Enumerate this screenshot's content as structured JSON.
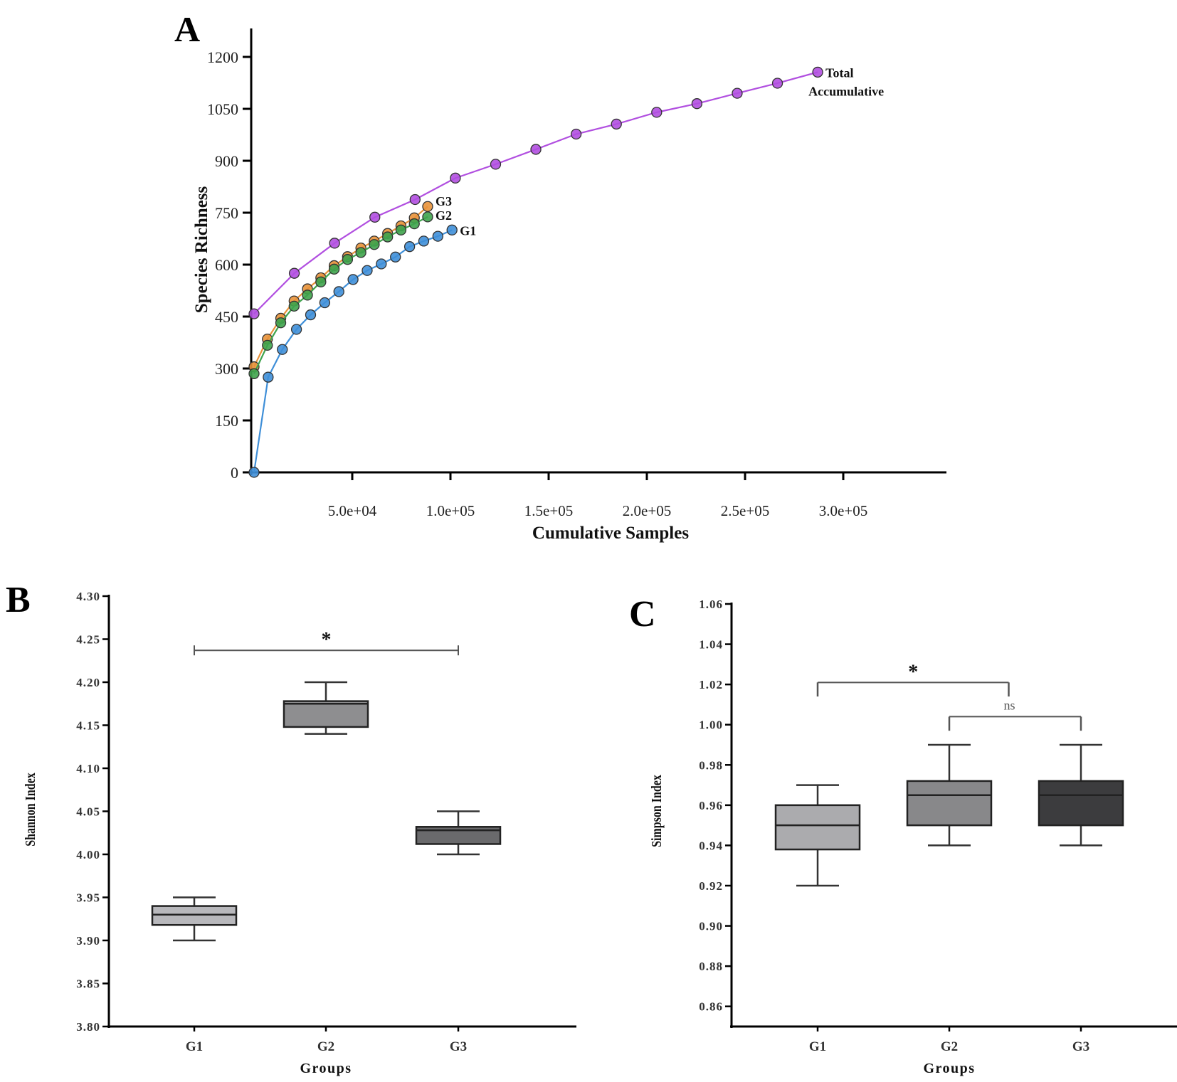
{
  "chart_data": [
    {
      "panel": "A",
      "type": "line",
      "title": "",
      "xlabel": "Cumulative Samples",
      "ylabel": "Species Richness",
      "xlim": [
        0,
        350000
      ],
      "ylim": [
        0,
        1250
      ],
      "x_ticks": [
        50000,
        100000,
        150000,
        200000,
        250000,
        300000
      ],
      "x_tick_labels": [
        "5.0e+04",
        "1.0e+05",
        "1.5e+05",
        "2.0e+05",
        "2.5e+05",
        "3.0e+05"
      ],
      "y_ticks": [
        0,
        150,
        300,
        450,
        600,
        750,
        900,
        1050,
        1200
      ],
      "y_tick_labels": [
        "0",
        "150",
        "300",
        "450",
        "600",
        "750",
        "900",
        "1050",
        "1200"
      ],
      "grid": false,
      "series": [
        {
          "name": "Total Accumulative",
          "label_lines": [
            "Total",
            "Accumulative"
          ],
          "color": "#b14fe0",
          "x": [
            0,
            20500,
            41000,
            61500,
            82000,
            102500,
            123000,
            143500,
            164000,
            184500,
            205000,
            225500,
            246000,
            266500,
            287000
          ],
          "y": [
            458,
            575,
            662,
            737,
            788,
            850,
            890,
            933,
            977,
            1006,
            1040,
            1065,
            1095,
            1124,
            1156
          ]
        },
        {
          "name": "G3",
          "label_lines": [
            "G3"
          ],
          "color": "#e8923a",
          "x": [
            0,
            6800,
            13600,
            20400,
            27200,
            34000,
            40800,
            47600,
            54400,
            61200,
            68000,
            74800,
            81600,
            88400
          ],
          "y": [
            305,
            385,
            445,
            495,
            530,
            562,
            597,
            623,
            648,
            668,
            690,
            712,
            735,
            768
          ]
        },
        {
          "name": "G2",
          "label_lines": [
            "G2"
          ],
          "color": "#3fa34d",
          "x": [
            0,
            6800,
            13600,
            20400,
            27200,
            34000,
            40800,
            47600,
            54400,
            61200,
            68000,
            74800,
            81600,
            88400
          ],
          "y": [
            285,
            367,
            432,
            480,
            512,
            550,
            587,
            615,
            635,
            658,
            680,
            700,
            718,
            738
          ]
        },
        {
          "name": "G1",
          "label_lines": [
            "G1"
          ],
          "color": "#3f8fd8",
          "x": [
            0,
            7200,
            14400,
            21600,
            28800,
            36000,
            43200,
            50400,
            57600,
            64800,
            72000,
            79200,
            86400,
            93600,
            100800
          ],
          "y": [
            0,
            275,
            355,
            413,
            455,
            490,
            522,
            557,
            583,
            602,
            622,
            652,
            668,
            682,
            700
          ]
        }
      ]
    },
    {
      "panel": "B",
      "type": "box",
      "title": "",
      "xlabel": "Groups",
      "ylabel": "Shannon Index",
      "ylim": [
        3.8,
        4.3
      ],
      "y_ticks": [
        3.8,
        3.85,
        3.9,
        3.95,
        4.0,
        4.05,
        4.1,
        4.15,
        4.2,
        4.25,
        4.3
      ],
      "y_tick_labels": [
        "3.80",
        "3.85",
        "3.90",
        "3.95",
        "4.00",
        "4.05",
        "4.10",
        "4.15",
        "4.20",
        "4.25",
        "4.30"
      ],
      "categories": [
        "G1",
        "G2",
        "G3"
      ],
      "boxes": [
        {
          "group": "G1",
          "min": 3.9,
          "q1": 3.918,
          "median": 3.93,
          "q3": 3.94,
          "max": 3.95,
          "color": "#b8b8bc"
        },
        {
          "group": "G2",
          "min": 4.14,
          "q1": 4.148,
          "median": 4.175,
          "q3": 4.178,
          "max": 4.2,
          "color": "#8e8e90"
        },
        {
          "group": "G3",
          "min": 4.0,
          "q1": 4.012,
          "median": 4.028,
          "q3": 4.032,
          "max": 4.05,
          "color": "#6a6a6c"
        }
      ],
      "significance": [
        {
          "from": "G1",
          "to": "G3",
          "label": "*",
          "y": 4.237
        }
      ]
    },
    {
      "panel": "C",
      "type": "box",
      "title": "",
      "xlabel": "Groups",
      "ylabel": "Simpson Index",
      "ylim": [
        0.85,
        1.06
      ],
      "y_ticks": [
        0.86,
        0.88,
        0.9,
        0.92,
        0.94,
        0.96,
        0.98,
        1.0,
        1.02,
        1.04,
        1.06
      ],
      "y_tick_labels": [
        "0.86",
        "0.88",
        "0.90",
        "0.92",
        "0.94",
        "0.96",
        "0.98",
        "1.00",
        "1.02",
        "1.04",
        "1.06"
      ],
      "categories": [
        "G1",
        "G2",
        "G3"
      ],
      "boxes": [
        {
          "group": "G1",
          "min": 0.92,
          "q1": 0.938,
          "median": 0.95,
          "q3": 0.96,
          "max": 0.97,
          "color": "#ababae"
        },
        {
          "group": "G2",
          "min": 0.94,
          "q1": 0.95,
          "median": 0.965,
          "q3": 0.972,
          "max": 0.99,
          "color": "#88888a"
        },
        {
          "group": "G3",
          "min": 0.94,
          "q1": 0.95,
          "median": 0.965,
          "q3": 0.972,
          "max": 0.99,
          "color": "#3c3c3e"
        }
      ],
      "significance": [
        {
          "from": "G1",
          "to": "G2.5",
          "label": "*",
          "y": 1.021,
          "drop": 0.007
        },
        {
          "from": "G2",
          "to": "G3",
          "label": "ns",
          "y": 1.004,
          "drop": 0.007
        }
      ]
    }
  ],
  "panel_labels": [
    "A",
    "B",
    "C"
  ]
}
